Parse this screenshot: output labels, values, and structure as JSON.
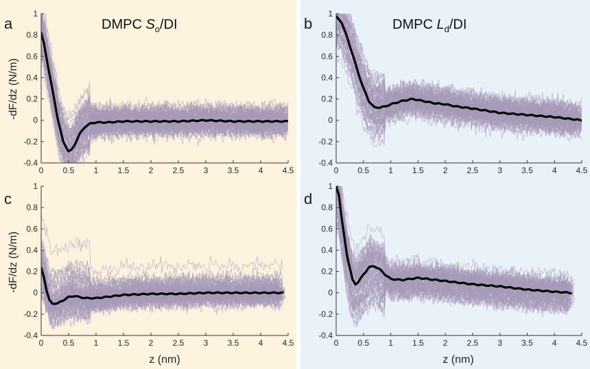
{
  "colors": {
    "left_bg": "#fdf3df",
    "right_bg": "#eaf2f9",
    "trace": "#a79ab8",
    "mean": "#000000"
  },
  "figure": {
    "ylabel_top": "-dF/dz (N/m)",
    "ylabel_bottom": "-dF/dz (N/m)",
    "xlabel_left": "z (nm)",
    "xlabel_right": "z (nm)"
  },
  "chart_data": [
    {
      "panel": "a",
      "type": "line",
      "title": "DMPC So/DI",
      "title_parts": {
        "prefix": "DMPC ",
        "italic": "S",
        "sub": "o",
        "suffix": "/DI"
      },
      "xlim": [
        0,
        4.5
      ],
      "ylim": [
        -0.4,
        1
      ],
      "xticks": [
        "0",
        "0.5",
        "1",
        "1.5",
        "2",
        "2.5",
        "3",
        "3.5",
        "4",
        "4.5"
      ],
      "yticks": [
        "-0.4",
        "-0.2",
        "0",
        "0.2",
        "0.4",
        "0.6",
        "0.8",
        "1"
      ],
      "series": [
        {
          "style": "bold-mean",
          "x": [
            0,
            0.05,
            0.1,
            0.2,
            0.3,
            0.4,
            0.5,
            0.55,
            0.6,
            0.7,
            0.8,
            0.9,
            1.0,
            1.2,
            1.5,
            2.0,
            2.5,
            3.0,
            3.5,
            4.0,
            4.5
          ],
          "y": [
            0.82,
            0.72,
            0.58,
            0.3,
            0.02,
            -0.2,
            -0.29,
            -0.28,
            -0.24,
            -0.13,
            -0.06,
            -0.03,
            -0.02,
            -0.02,
            -0.01,
            -0.01,
            -0.01,
            0.0,
            -0.01,
            -0.01,
            -0.01
          ]
        }
      ],
      "trace_band": {
        "count": 70,
        "spread_far": 0.13,
        "spread_near": 0.22
      }
    },
    {
      "panel": "b",
      "type": "line",
      "title": "DMPC Ld/DI",
      "title_parts": {
        "prefix": "DMPC ",
        "italic": "L",
        "sub": "d",
        "suffix": "/DI"
      },
      "xlim": [
        0,
        4.5
      ],
      "ylim": [
        -0.4,
        1
      ],
      "xticks": [
        "0",
        "0.5",
        "1",
        "1.5",
        "2",
        "2.5",
        "3",
        "3.5",
        "4",
        "4.5"
      ],
      "yticks": [
        "-0.4",
        "-0.2",
        "0",
        "0.2",
        "0.4",
        "0.6",
        "0.8",
        "1"
      ],
      "series": [
        {
          "style": "bold-mean",
          "x": [
            0,
            0.1,
            0.2,
            0.3,
            0.4,
            0.5,
            0.6,
            0.7,
            0.8,
            0.9,
            1.0,
            1.2,
            1.4,
            1.6,
            1.8,
            2.0,
            2.2,
            2.5,
            3.0,
            3.5,
            4.0,
            4.5
          ],
          "y": [
            0.97,
            0.92,
            0.78,
            0.62,
            0.45,
            0.3,
            0.18,
            0.12,
            0.12,
            0.13,
            0.15,
            0.18,
            0.2,
            0.18,
            0.16,
            0.15,
            0.13,
            0.11,
            0.07,
            0.05,
            0.03,
            0.0
          ]
        }
      ],
      "trace_band": {
        "count": 70,
        "spread_far": 0.15,
        "spread_near": 0.25
      }
    },
    {
      "panel": "c",
      "type": "line",
      "title": "",
      "xlim": [
        0,
        4.5
      ],
      "ylim": [
        -0.4,
        1
      ],
      "xticks": [
        "0",
        "0.5",
        "1",
        "1.5",
        "2",
        "2.5",
        "3",
        "3.5",
        "4",
        "4.5"
      ],
      "yticks": [
        "-0.4",
        "-0.2",
        "0",
        "0.2",
        "0.4",
        "0.6",
        "0.8",
        "1"
      ],
      "series": [
        {
          "style": "bold-mean",
          "x": [
            0,
            0.05,
            0.1,
            0.15,
            0.2,
            0.3,
            0.4,
            0.5,
            0.6,
            0.7,
            0.8,
            1.0,
            1.5,
            2.0,
            2.5,
            3.0,
            3.5,
            4.0,
            4.4
          ],
          "y": [
            0.23,
            0.15,
            0.02,
            -0.07,
            -0.1,
            -0.1,
            -0.07,
            -0.04,
            -0.03,
            -0.04,
            -0.05,
            -0.05,
            -0.02,
            -0.01,
            -0.01,
            0.0,
            0.0,
            0.0,
            0.0
          ]
        }
      ],
      "trace_band": {
        "count": 70,
        "spread_far": 0.12,
        "spread_near": 0.18
      }
    },
    {
      "panel": "d",
      "type": "line",
      "title": "",
      "xlim": [
        0,
        4.5
      ],
      "ylim": [
        -0.4,
        1
      ],
      "xticks": [
        "0",
        "0.5",
        "1",
        "1.5",
        "2",
        "2.5",
        "3",
        "3.5",
        "4",
        "4.5"
      ],
      "yticks": [
        "-0.4",
        "-0.2",
        "0",
        "0.2",
        "0.4",
        "0.6",
        "0.8",
        "1"
      ],
      "series": [
        {
          "style": "bold-mean",
          "x": [
            0,
            0.05,
            0.1,
            0.2,
            0.3,
            0.35,
            0.4,
            0.5,
            0.6,
            0.7,
            0.8,
            0.9,
            1.0,
            1.2,
            1.5,
            2.0,
            2.5,
            3.0,
            3.5,
            4.0,
            4.3
          ],
          "y": [
            1.0,
            0.92,
            0.7,
            0.35,
            0.12,
            0.08,
            0.1,
            0.17,
            0.24,
            0.25,
            0.22,
            0.17,
            0.13,
            0.12,
            0.14,
            0.11,
            0.08,
            0.06,
            0.03,
            0.01,
            0.0
          ]
        }
      ],
      "trace_band": {
        "count": 70,
        "spread_far": 0.15,
        "spread_near": 0.25
      }
    }
  ]
}
